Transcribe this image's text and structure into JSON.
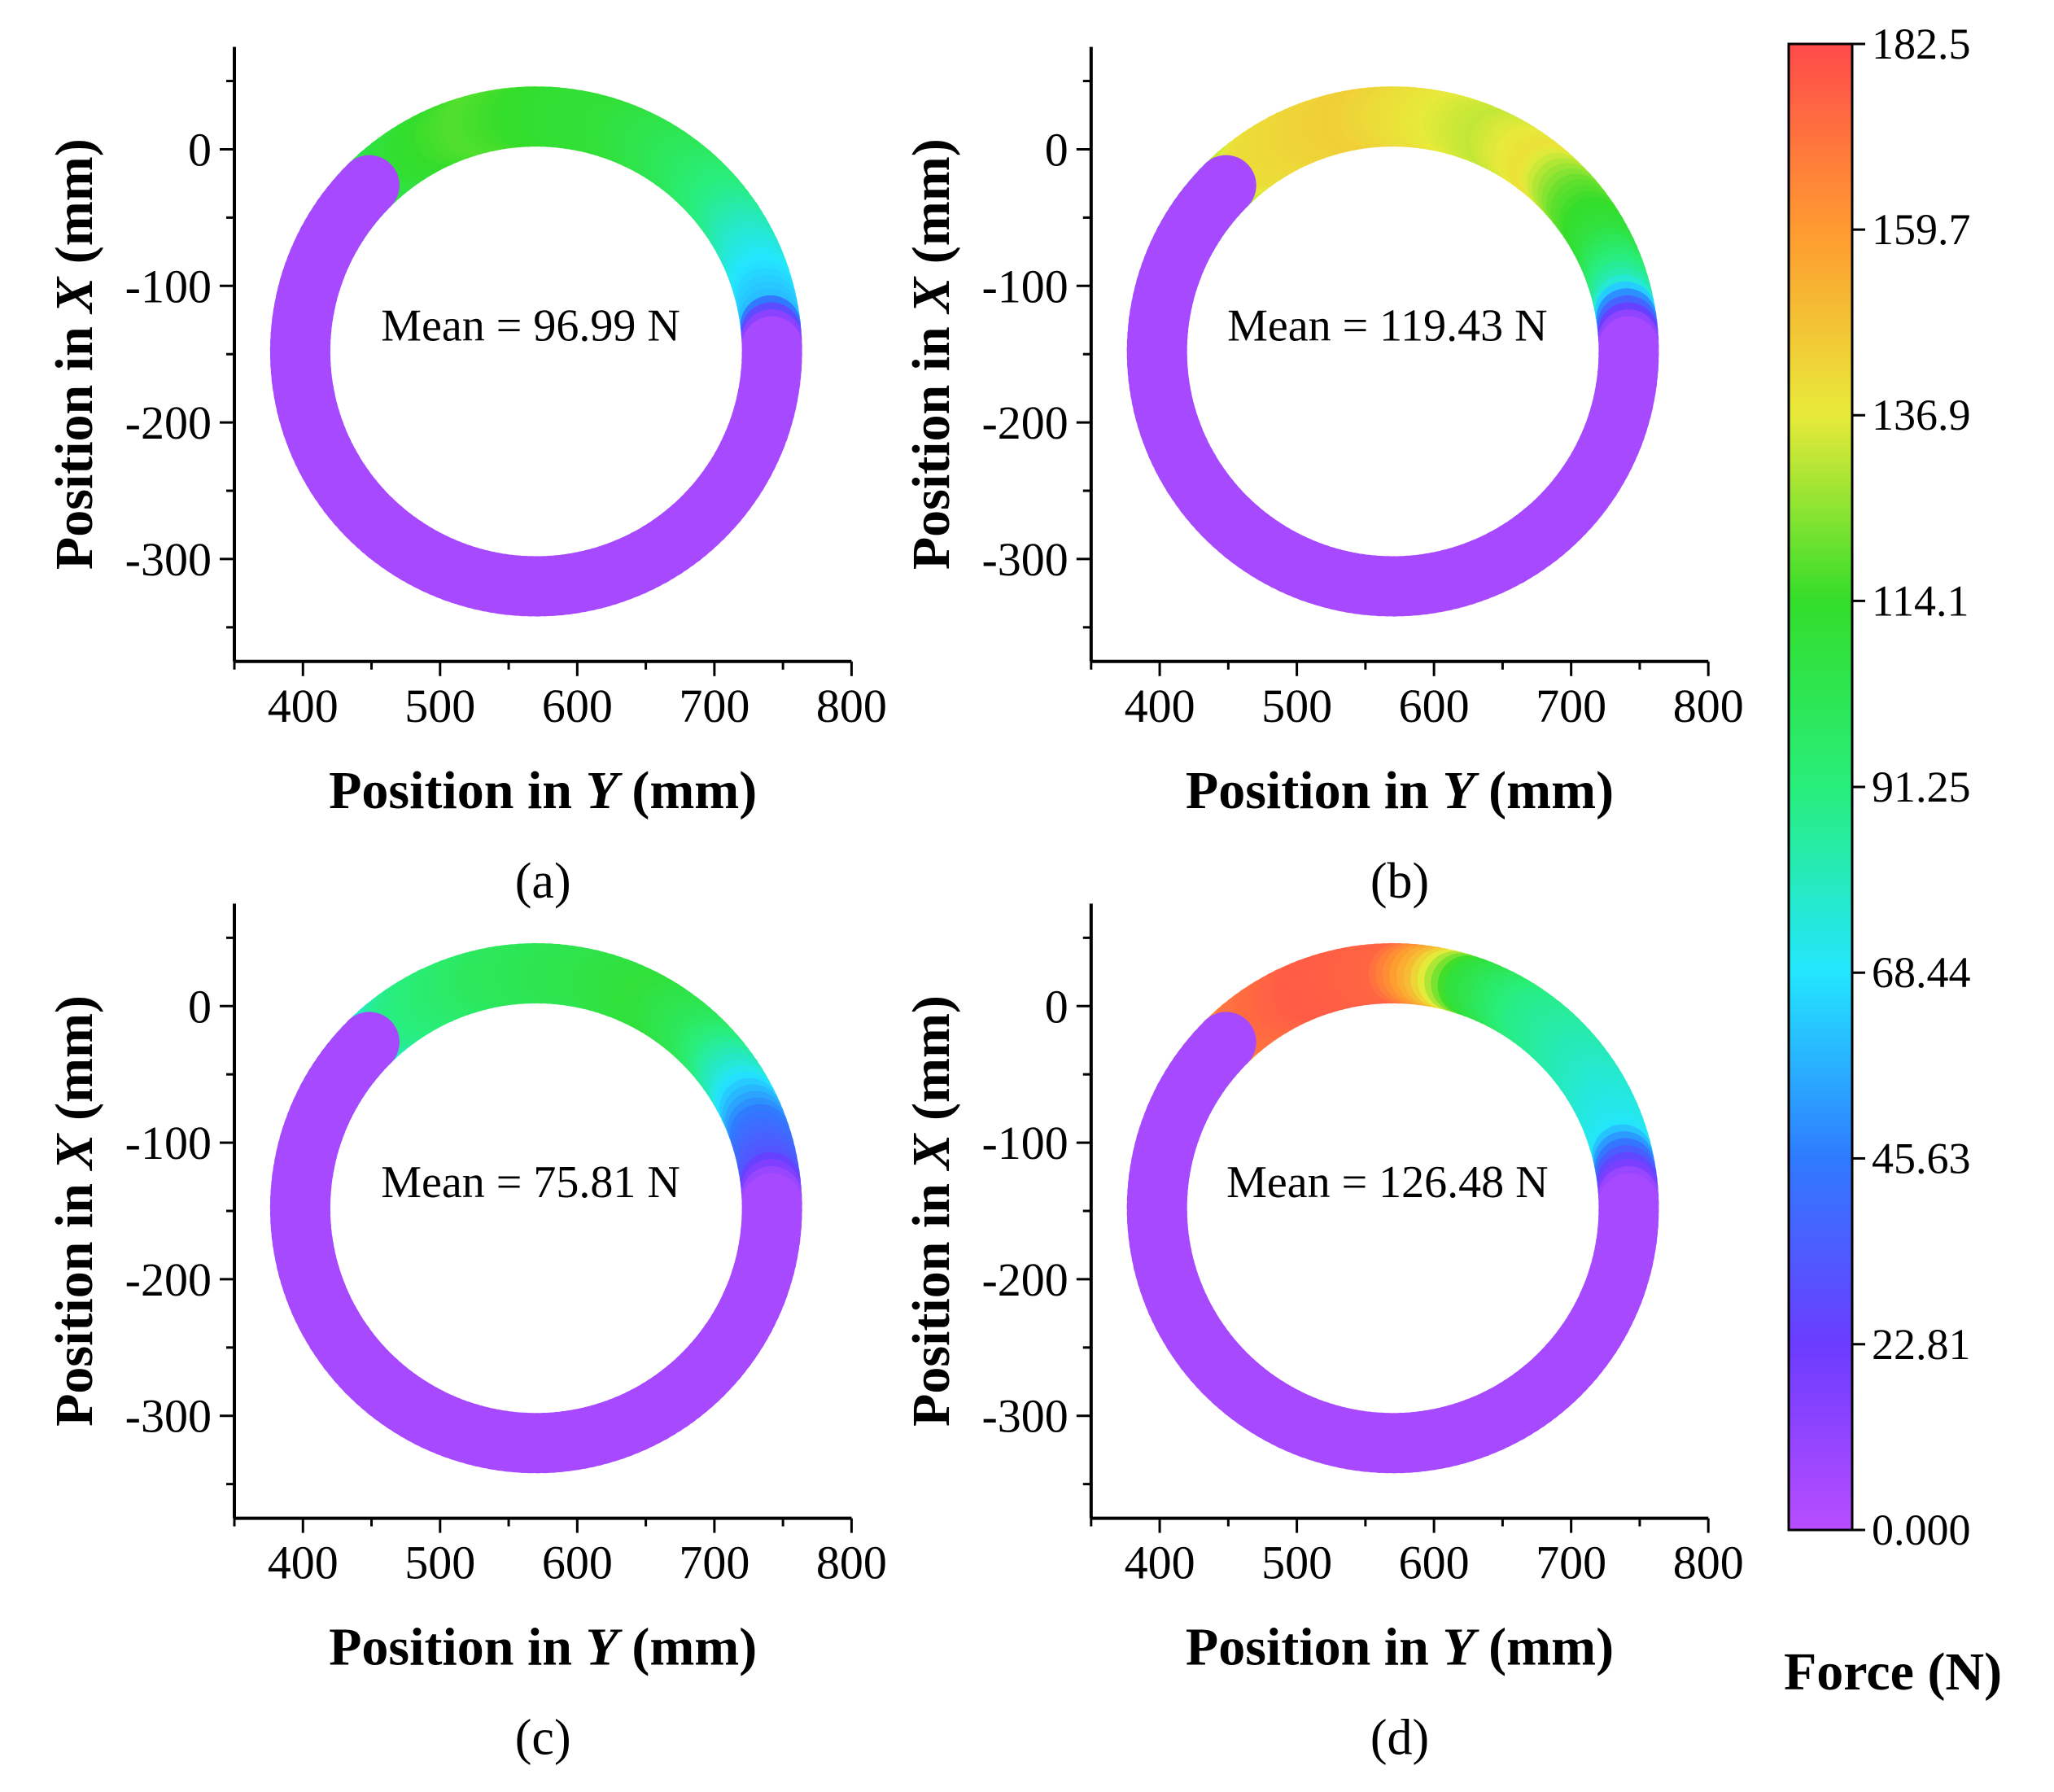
{
  "chart_data": {
    "type": "scatter",
    "shared": {
      "xlabel_prefix": "Position in ",
      "xlabel_var": "Y",
      "xlabel_suffix": " (mm)",
      "ylabel_prefix": "Position in ",
      "ylabel_var": "X",
      "ylabel_suffix": " (mm)",
      "xlim": [
        350,
        800
      ],
      "ylim": [
        -375,
        75
      ],
      "xticks": [
        "400",
        "500",
        "600",
        "700",
        "800"
      ],
      "xtick_values": [
        400,
        500,
        600,
        700,
        800
      ],
      "yticks": [
        "0",
        "-100",
        "-200",
        "-300"
      ],
      "ytick_values": [
        0,
        -100,
        -200,
        -300
      ],
      "ring": {
        "center_y_mm": 570,
        "center_x_mm": -148,
        "radius_mm": 172,
        "gap_start_deg": 135,
        "gap_end_deg": 152
      }
    },
    "panels": [
      {
        "panel_label": "(a)",
        "mean_label": "Mean = 96.99 N",
        "mean": 96.99,
        "force_profile": [
          {
            "angle_deg": 152,
            "force": 78
          },
          {
            "angle_deg": 138,
            "force": 100
          },
          {
            "angle_deg": 120,
            "force": 112
          },
          {
            "angle_deg": 105,
            "force": 118
          },
          {
            "angle_deg": 85,
            "force": 112
          },
          {
            "angle_deg": 70,
            "force": 110
          },
          {
            "angle_deg": 50,
            "force": 100
          },
          {
            "angle_deg": 35,
            "force": 88
          },
          {
            "angle_deg": 20,
            "force": 72
          },
          {
            "angle_deg": 8,
            "force": 60
          },
          {
            "angle_deg": 2,
            "force": 5
          },
          {
            "angle_deg": -30,
            "force": 5
          },
          {
            "angle_deg": -90,
            "force": 5
          },
          {
            "angle_deg": -150,
            "force": 5
          },
          {
            "angle_deg": -208,
            "force": 5
          }
        ]
      },
      {
        "panel_label": "(b)",
        "mean_label": "Mean = 119.43 N",
        "mean": 119.43,
        "force_profile": [
          {
            "angle_deg": 152,
            "force": 75
          },
          {
            "angle_deg": 140,
            "force": 120
          },
          {
            "angle_deg": 125,
            "force": 140
          },
          {
            "angle_deg": 100,
            "force": 145
          },
          {
            "angle_deg": 80,
            "force": 138
          },
          {
            "angle_deg": 65,
            "force": 132
          },
          {
            "angle_deg": 50,
            "force": 140
          },
          {
            "angle_deg": 38,
            "force": 120
          },
          {
            "angle_deg": 25,
            "force": 108
          },
          {
            "angle_deg": 12,
            "force": 80
          },
          {
            "angle_deg": 2,
            "force": 5
          },
          {
            "angle_deg": -30,
            "force": 5
          },
          {
            "angle_deg": -90,
            "force": 5
          },
          {
            "angle_deg": -150,
            "force": 5
          },
          {
            "angle_deg": -208,
            "force": 5
          }
        ]
      },
      {
        "panel_label": "(c)",
        "mean_label": "Mean = 75.81 N",
        "mean": 75.81,
        "force_profile": [
          {
            "angle_deg": 152,
            "force": 48
          },
          {
            "angle_deg": 140,
            "force": 65
          },
          {
            "angle_deg": 125,
            "force": 88
          },
          {
            "angle_deg": 100,
            "force": 100
          },
          {
            "angle_deg": 80,
            "force": 104
          },
          {
            "angle_deg": 60,
            "force": 110
          },
          {
            "angle_deg": 45,
            "force": 100
          },
          {
            "angle_deg": 30,
            "force": 75
          },
          {
            "angle_deg": 18,
            "force": 45
          },
          {
            "angle_deg": 8,
            "force": 32
          },
          {
            "angle_deg": 2,
            "force": 5
          },
          {
            "angle_deg": -30,
            "force": 5
          },
          {
            "angle_deg": -90,
            "force": 5
          },
          {
            "angle_deg": -150,
            "force": 5
          },
          {
            "angle_deg": -208,
            "force": 5
          }
        ]
      },
      {
        "panel_label": "(d)",
        "mean_label": "Mean = 126.48 N",
        "mean": 126.48,
        "force_profile": [
          {
            "angle_deg": 152,
            "force": 60
          },
          {
            "angle_deg": 142,
            "force": 135
          },
          {
            "angle_deg": 130,
            "force": 170
          },
          {
            "angle_deg": 110,
            "force": 178
          },
          {
            "angle_deg": 90,
            "force": 175
          },
          {
            "angle_deg": 80,
            "force": 150
          },
          {
            "angle_deg": 70,
            "force": 110
          },
          {
            "angle_deg": 55,
            "force": 90
          },
          {
            "angle_deg": 35,
            "force": 80
          },
          {
            "angle_deg": 15,
            "force": 70
          },
          {
            "angle_deg": 2,
            "force": 5
          },
          {
            "angle_deg": -30,
            "force": 5
          },
          {
            "angle_deg": -90,
            "force": 5
          },
          {
            "angle_deg": -150,
            "force": 5
          },
          {
            "angle_deg": -208,
            "force": 5
          }
        ]
      }
    ],
    "colorbar": {
      "title": "Force (N)",
      "min": 0,
      "max": 182.5,
      "tick_labels": [
        "182.5",
        "159.7",
        "136.9",
        "114.1",
        "91.25",
        "68.44",
        "45.63",
        "22.81",
        "0.000"
      ],
      "tick_values": [
        182.5,
        159.7,
        136.9,
        114.1,
        91.25,
        68.44,
        45.63,
        22.81,
        0
      ],
      "colormap_stops": [
        "#b84dff",
        "#6b3cff",
        "#2f7bff",
        "#23e6ff",
        "#28ee7a",
        "#33dd2a",
        "#e8ea3a",
        "#ff9a30",
        "#ff4b4b"
      ]
    }
  }
}
